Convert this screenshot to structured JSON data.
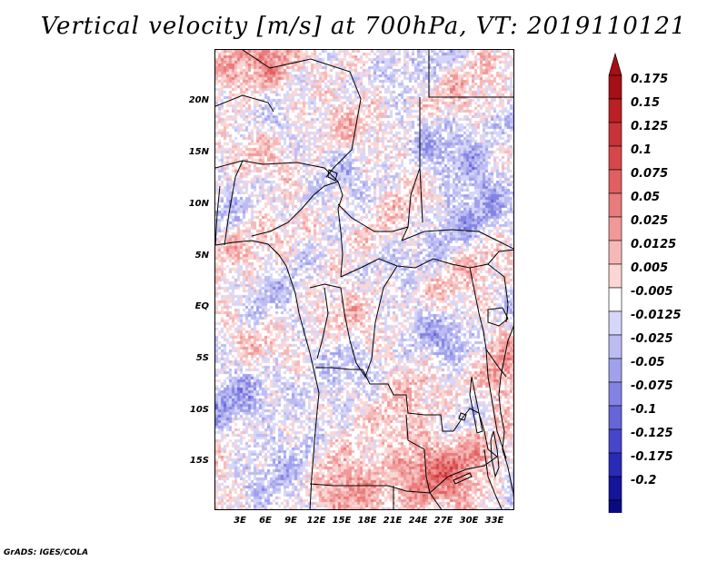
{
  "title": "Vertical velocity [m/s] at 700hPa, VT: 2019110121",
  "credit": "GrADS: IGES/COLA",
  "map": {
    "variable": "Vertical velocity",
    "units": "m/s",
    "level": "700hPa",
    "valid_time": "2019110121",
    "lat_range": [
      -20,
      24.5
    ],
    "lon_range": [
      0,
      36
    ],
    "lat_ticks": [
      {
        "label": "20N",
        "value": 20
      },
      {
        "label": "15N",
        "value": 15
      },
      {
        "label": "10N",
        "value": 10
      },
      {
        "label": "5N",
        "value": 5
      },
      {
        "label": "EQ",
        "value": 0
      },
      {
        "label": "5S",
        "value": -5
      },
      {
        "label": "10S",
        "value": -10
      },
      {
        "label": "15S",
        "value": -15
      }
    ],
    "lon_ticks": [
      {
        "label": "3E",
        "value": 3
      },
      {
        "label": "6E",
        "value": 6
      },
      {
        "label": "9E",
        "value": 9
      },
      {
        "label": "12E",
        "value": 12
      },
      {
        "label": "15E",
        "value": 15
      },
      {
        "label": "18E",
        "value": 18
      },
      {
        "label": "21E",
        "value": 21
      },
      {
        "label": "24E",
        "value": 24
      },
      {
        "label": "27E",
        "value": 27
      },
      {
        "label": "30E",
        "value": 30
      },
      {
        "label": "33E",
        "value": 33
      }
    ]
  },
  "colorbar": {
    "labels": [
      "0.175",
      "0.15",
      "0.125",
      "0.1",
      "0.075",
      "0.05",
      "0.025",
      "0.0125",
      "0.005",
      "-0.005",
      "-0.0125",
      "-0.025",
      "-0.05",
      "-0.075",
      "-0.1",
      "-0.125",
      "-0.175",
      "-0.2"
    ],
    "colors": [
      "#a50f15",
      "#bb2024",
      "#c93236",
      "#d6474a",
      "#e05f61",
      "#e87b7b",
      "#f09998",
      "#f6b8b7",
      "#fbd6d5",
      "#ffffff",
      "#d6d6f8",
      "#bcbcf2",
      "#a0a0ec",
      "#8383e3",
      "#6565d8",
      "#4646cb",
      "#2a2ab8",
      "#14149c",
      "#0a0a80"
    ],
    "top_arrow_color": "#a50f15",
    "bottom_arrow_color": "#0a0a80"
  }
}
